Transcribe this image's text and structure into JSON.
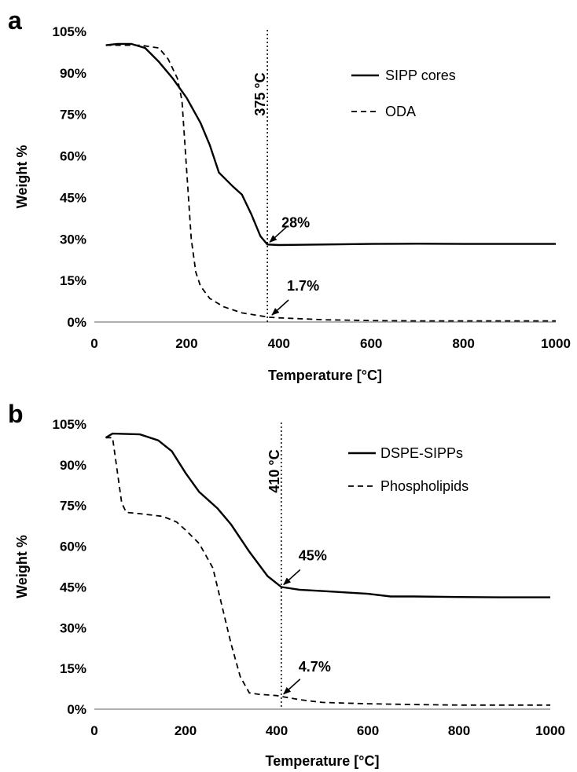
{
  "chart_data": [
    {
      "type": "line",
      "panel_label": "a",
      "xlabel": "Temperature [°C]",
      "ylabel": "Weight %",
      "xlim": [
        0,
        1000
      ],
      "ylim": [
        0,
        105
      ],
      "x_ticks": [
        "0",
        "200",
        "400",
        "600",
        "800",
        "1000"
      ],
      "y_ticks": [
        "0%",
        "15%",
        "30%",
        "45%",
        "60%",
        "75%",
        "90%",
        "105%"
      ],
      "legend": {
        "placement": "top-right"
      },
      "series": [
        {
          "name": "SIPP cores",
          "style": "solid",
          "x": [
            25,
            50,
            80,
            110,
            140,
            170,
            200,
            230,
            250,
            270,
            300,
            320,
            340,
            360,
            375,
            400,
            500,
            600,
            700,
            800,
            900,
            1000
          ],
          "y": [
            100,
            100.5,
            100.5,
            99,
            94,
            88,
            81,
            72,
            64,
            54,
            49,
            46,
            39,
            31,
            28,
            27.8,
            28,
            28.2,
            28.3,
            28.2,
            28.2,
            28.2
          ]
        },
        {
          "name": "ODA",
          "style": "dashed",
          "x": [
            25,
            60,
            100,
            140,
            160,
            180,
            190,
            200,
            210,
            220,
            230,
            250,
            280,
            320,
            360,
            380,
            400,
            500,
            600,
            700,
            800,
            900,
            1000
          ],
          "y": [
            100,
            100,
            100,
            99,
            95,
            88,
            80,
            55,
            30,
            18,
            13,
            8.5,
            5.5,
            3.3,
            2.2,
            1.7,
            1.5,
            0.8,
            0.5,
            0.4,
            0.4,
            0.4,
            0.4
          ]
        }
      ],
      "reference_line": {
        "x": 375,
        "label": "375 °C",
        "style": "dotted"
      },
      "annotations": [
        {
          "text": "28%",
          "x": 375,
          "y": 28
        },
        {
          "text": "1.7%",
          "x": 380,
          "y": 1.7
        }
      ]
    },
    {
      "type": "line",
      "panel_label": "b",
      "xlabel": "Temperature [°C]",
      "ylabel": "Weight %",
      "xlim": [
        0,
        1000
      ],
      "ylim": [
        0,
        105
      ],
      "x_ticks": [
        "0",
        "200",
        "400",
        "600",
        "800",
        "1000"
      ],
      "y_ticks": [
        "0%",
        "15%",
        "30%",
        "45%",
        "60%",
        "75%",
        "90%",
        "105%"
      ],
      "legend": {
        "placement": "top-right"
      },
      "series": [
        {
          "name": "DSPE-SIPPs",
          "style": "solid",
          "x": [
            25,
            40,
            100,
            140,
            170,
            200,
            230,
            270,
            300,
            340,
            380,
            410,
            450,
            500,
            550,
            600,
            650,
            700,
            800,
            900,
            1000
          ],
          "y": [
            100,
            101.5,
            101.2,
            99,
            95,
            87,
            80,
            74,
            68,
            58,
            49,
            45,
            44,
            43.5,
            43,
            42.5,
            41.5,
            41.5,
            41.3,
            41.2,
            41.2
          ]
        },
        {
          "name": "Phospholipids",
          "style": "dashed",
          "x": [
            25,
            40,
            50,
            60,
            70,
            100,
            150,
            180,
            200,
            230,
            260,
            280,
            300,
            320,
            340,
            360,
            400,
            410,
            450,
            500,
            600,
            700,
            800,
            900,
            1000
          ],
          "y": [
            100,
            100,
            88,
            76,
            72.5,
            72,
            71,
            69,
            66,
            61,
            52,
            38,
            24,
            12,
            6,
            5.5,
            5,
            4.7,
            3.5,
            2.5,
            2,
            1.7,
            1.5,
            1.5,
            1.5
          ]
        }
      ],
      "reference_line": {
        "x": 410,
        "label": "410 °C",
        "style": "dotted"
      },
      "annotations": [
        {
          "text": "45%",
          "x": 410,
          "y": 45
        },
        {
          "text": "4.7%",
          "x": 410,
          "y": 4.7
        }
      ]
    }
  ]
}
